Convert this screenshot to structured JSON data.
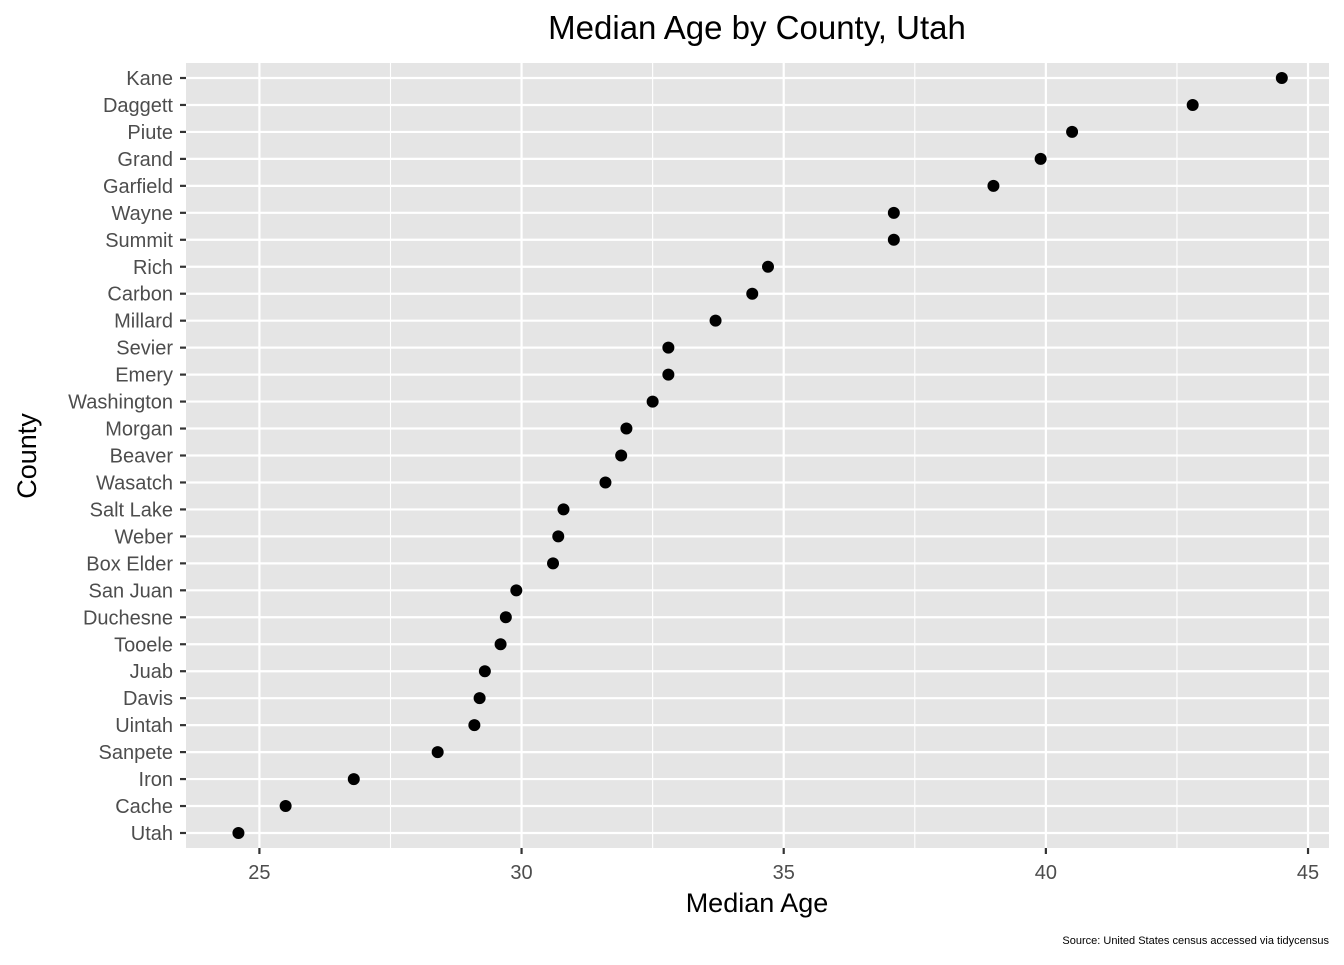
{
  "chart_data": {
    "type": "scatter",
    "title": "Median Age by County, Utah",
    "xlabel": "Median Age",
    "ylabel": "County",
    "caption": "Source: United States census accessed via tidycensus",
    "xlim": [
      23.6,
      45.4
    ],
    "x_ticks": [
      25,
      30,
      35,
      40,
      45
    ],
    "grid": true,
    "colors": {
      "panel": "#e5e5e5",
      "grid": "#ffffff",
      "point": "#000000",
      "tick_label": "#4d4d4d"
    },
    "categories": [
      "Kane",
      "Daggett",
      "Piute",
      "Grand",
      "Garfield",
      "Wayne",
      "Summit",
      "Rich",
      "Carbon",
      "Millard",
      "Sevier",
      "Emery",
      "Washington",
      "Morgan",
      "Beaver",
      "Wasatch",
      "Salt Lake",
      "Weber",
      "Box Elder",
      "San Juan",
      "Duchesne",
      "Tooele",
      "Juab",
      "Davis",
      "Uintah",
      "Sanpete",
      "Iron",
      "Cache",
      "Utah"
    ],
    "values": [
      44.5,
      42.8,
      40.5,
      39.9,
      39.0,
      37.1,
      37.1,
      34.7,
      34.4,
      33.7,
      32.8,
      32.8,
      32.5,
      32.0,
      31.9,
      31.6,
      30.8,
      30.7,
      30.6,
      29.9,
      29.7,
      29.6,
      29.3,
      29.2,
      29.1,
      28.4,
      26.8,
      25.5,
      24.6
    ]
  }
}
